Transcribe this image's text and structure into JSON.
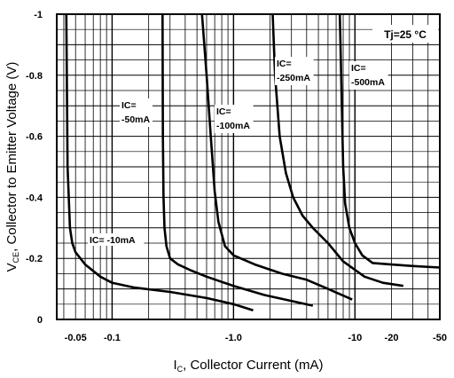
{
  "chart_data": {
    "type": "line",
    "title": "",
    "xlabel_main": "I",
    "xlabel_sub": "C",
    "xlabel_rest": ", Collector Current (mA)",
    "ylabel_main": "V",
    "ylabel_sub": "CE",
    "ylabel_rest": ", Collector to Emitter Voltage (V)",
    "x_scale": "log",
    "x_ticks": [
      {
        "value": 0.05,
        "label": "-0.05"
      },
      {
        "value": 0.1,
        "label": "-0.1"
      },
      {
        "value": 1,
        "label": "-1.0"
      },
      {
        "value": 10,
        "label": "-10"
      },
      {
        "value": 20,
        "label": "-20"
      },
      {
        "value": 50,
        "label": "-50"
      }
    ],
    "y_ticks": [
      {
        "value": 0,
        "label": "0"
      },
      {
        "value": 0.2,
        "label": "-0.2"
      },
      {
        "value": 0.4,
        "label": "-0.4"
      },
      {
        "value": 0.6,
        "label": "-0.6"
      },
      {
        "value": 0.8,
        "label": "-0.8"
      },
      {
        "value": 1.0,
        "label": "-1"
      }
    ],
    "xlim": [
      0.035,
      50
    ],
    "ylim": [
      0,
      1.0
    ],
    "grid": true,
    "condition_label": "Tj=25 °C",
    "series": [
      {
        "name": "IC= -10mA",
        "points": [
          [
            0.042,
            1.0
          ],
          [
            0.043,
            0.5
          ],
          [
            0.045,
            0.3
          ],
          [
            0.047,
            0.25
          ],
          [
            0.05,
            0.22
          ],
          [
            0.06,
            0.18
          ],
          [
            0.08,
            0.14
          ],
          [
            0.1,
            0.12
          ],
          [
            0.15,
            0.105
          ],
          [
            0.3,
            0.09
          ],
          [
            0.6,
            0.07
          ],
          [
            1.0,
            0.05
          ],
          [
            1.45,
            0.03
          ]
        ]
      },
      {
        "name": "IC= -50mA",
        "points": [
          [
            0.26,
            1.0
          ],
          [
            0.262,
            0.6
          ],
          [
            0.265,
            0.4
          ],
          [
            0.27,
            0.3
          ],
          [
            0.28,
            0.24
          ],
          [
            0.3,
            0.2
          ],
          [
            0.35,
            0.18
          ],
          [
            0.45,
            0.16
          ],
          [
            0.6,
            0.14
          ],
          [
            1.0,
            0.11
          ],
          [
            1.8,
            0.08
          ],
          [
            4.5,
            0.045
          ]
        ]
      },
      {
        "name": "IC= -100mA",
        "points": [
          [
            0.55,
            1.0
          ],
          [
            0.6,
            0.8
          ],
          [
            0.65,
            0.6
          ],
          [
            0.7,
            0.42
          ],
          [
            0.75,
            0.32
          ],
          [
            0.85,
            0.24
          ],
          [
            1.0,
            0.21
          ],
          [
            1.5,
            0.18
          ],
          [
            2.5,
            0.15
          ],
          [
            4.0,
            0.13
          ],
          [
            6.0,
            0.1
          ],
          [
            9.5,
            0.065
          ]
        ]
      },
      {
        "name": "IC= -250mA",
        "points": [
          [
            2.1,
            1.0
          ],
          [
            2.2,
            0.8
          ],
          [
            2.4,
            0.6
          ],
          [
            2.7,
            0.48
          ],
          [
            3.1,
            0.4
          ],
          [
            3.7,
            0.34
          ],
          [
            4.5,
            0.3
          ],
          [
            6.0,
            0.25
          ],
          [
            8.0,
            0.19
          ],
          [
            12.0,
            0.14
          ],
          [
            17.0,
            0.12
          ],
          [
            25.0,
            0.11
          ]
        ]
      },
      {
        "name": "IC= -500mA",
        "points": [
          [
            7.5,
            1.0
          ],
          [
            7.6,
            0.9
          ],
          [
            7.8,
            0.7
          ],
          [
            8.0,
            0.5
          ],
          [
            8.3,
            0.38
          ],
          [
            9.0,
            0.3
          ],
          [
            10.0,
            0.25
          ],
          [
            11.5,
            0.21
          ],
          [
            14.0,
            0.185
          ],
          [
            20.0,
            0.18
          ],
          [
            30.0,
            0.175
          ],
          [
            50.0,
            0.17
          ]
        ]
      }
    ],
    "annotations": [
      {
        "series": 0,
        "lines": [
          "IC= -10mA"
        ]
      },
      {
        "series": 1,
        "lines": [
          "IC=",
          "-50mA"
        ]
      },
      {
        "series": 2,
        "lines": [
          "IC=",
          "-100mA"
        ]
      },
      {
        "series": 3,
        "lines": [
          "IC=",
          "-250mA"
        ]
      },
      {
        "series": 4,
        "lines": [
          "IC=",
          "-500mA"
        ]
      }
    ]
  }
}
